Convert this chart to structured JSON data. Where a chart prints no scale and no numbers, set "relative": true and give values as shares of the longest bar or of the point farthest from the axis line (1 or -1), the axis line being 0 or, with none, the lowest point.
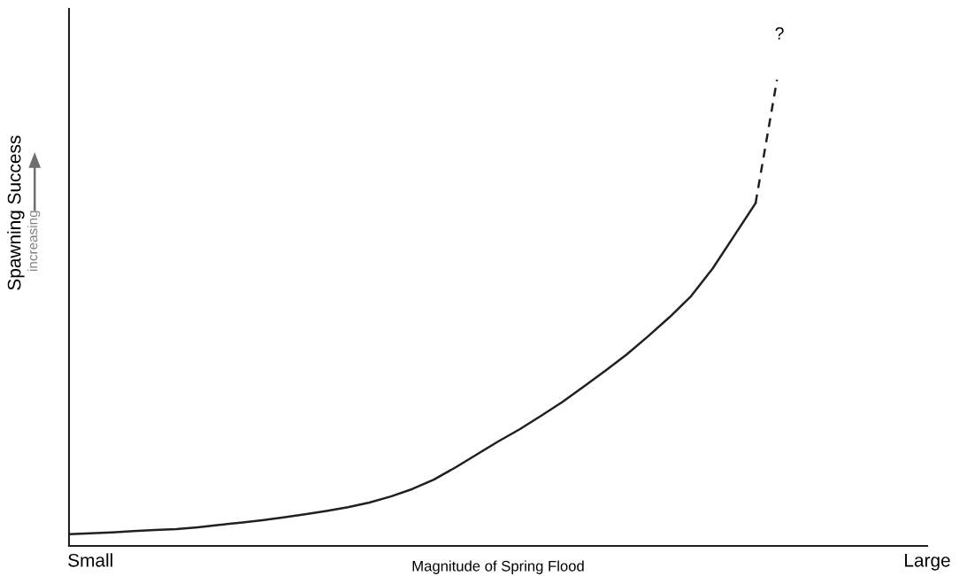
{
  "chart_data": {
    "type": "line",
    "relative": true,
    "xlabel": "Magnitude of Spring Flood",
    "ylabel": "Spawning Success",
    "categories": [
      null,
      "Small",
      null,
      null,
      null,
      null,
      null,
      null,
      null,
      null,
      null,
      null,
      null,
      null,
      null,
      null,
      null,
      null,
      null,
      null,
      null,
      null,
      null,
      null,
      null,
      null,
      null,
      null,
      null,
      null,
      null,
      null,
      null,
      null,
      null,
      null,
      null,
      null,
      null,
      null,
      "Large"
    ],
    "grid": false,
    "legend": false,
    "marker": "none",
    "series": [
      {
        "color": "#231f20",
        "line_style": "solid",
        "values": [
          0.025,
          0.027,
          0.029,
          0.032,
          0.034,
          0.036,
          0.04,
          0.045,
          0.05,
          0.055,
          0.061,
          0.068,
          0.075,
          0.083,
          0.093,
          0.106,
          0.122,
          0.142,
          0.168,
          0.196,
          0.224,
          0.25,
          0.279,
          0.309,
          0.342,
          0.376,
          0.411,
          0.45,
          0.491,
          0.536,
          0.595,
          0.665,
          0.735,
          null,
          null,
          null,
          null,
          null,
          null,
          null,
          null
        ]
      },
      {
        "color": "#231f20",
        "line_style": "dashed",
        "values": [
          null,
          null,
          null,
          null,
          null,
          null,
          null,
          null,
          null,
          null,
          null,
          null,
          null,
          null,
          null,
          null,
          null,
          null,
          null,
          null,
          null,
          null,
          null,
          null,
          null,
          null,
          null,
          null,
          null,
          null,
          null,
          null,
          0.735,
          1.0,
          null,
          null,
          null,
          null,
          null,
          null,
          null
        ]
      }
    ],
    "annotations": [
      "increasing",
      "?"
    ]
  }
}
